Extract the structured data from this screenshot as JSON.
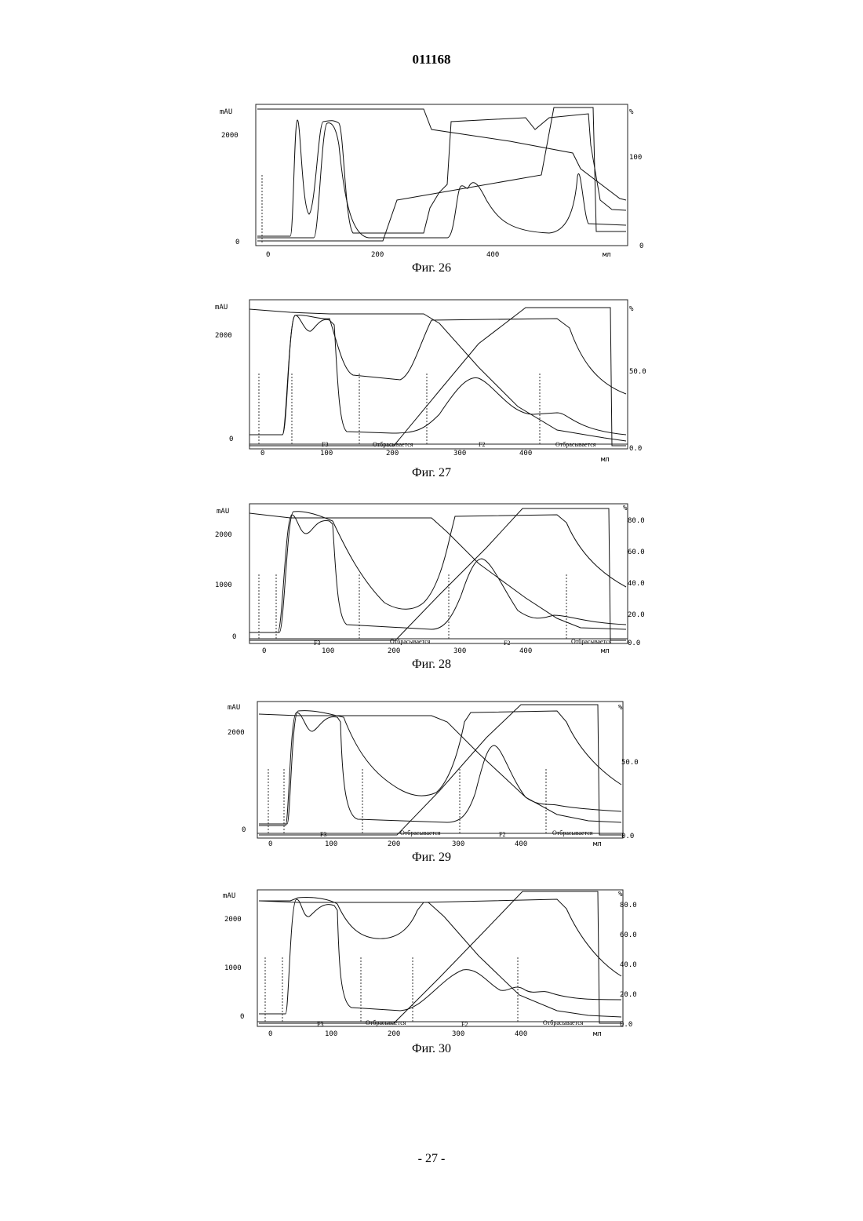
{
  "document": {
    "number": "011168",
    "page": "- 27 -"
  },
  "figures": [
    {
      "id": "fig26",
      "caption": "Фиг. 26",
      "y_units": "mAU",
      "y_right_units": "%",
      "x_units": "мл",
      "left_ticks": [
        "2000",
        "0"
      ],
      "right_ticks": [
        "100",
        "0"
      ],
      "x_ticks": [
        "0",
        "200",
        "400"
      ],
      "segments": []
    },
    {
      "id": "fig27",
      "caption": "Фиг. 27",
      "y_units": "mAU",
      "y_right_units": "%",
      "x_units": "мл",
      "left_ticks": [
        "2000",
        "0"
      ],
      "right_ticks": [
        "50.0",
        "0.0"
      ],
      "x_ticks": [
        "0",
        "100",
        "200",
        "300",
        "400"
      ],
      "segments": [
        "F3",
        "Отбрасывается",
        "F2",
        "Отбрасывается"
      ]
    },
    {
      "id": "fig28",
      "caption": "Фиг. 28",
      "y_units": "mAU",
      "y_right_units": "%",
      "x_units": "мл",
      "left_ticks": [
        "2000",
        "1000",
        "0"
      ],
      "right_ticks": [
        "80.0",
        "60.0",
        "40.0",
        "20.0",
        "0.0"
      ],
      "x_ticks": [
        "0",
        "100",
        "200",
        "300",
        "400"
      ],
      "segments": [
        "F3",
        "Отбрасывается",
        "F2",
        "Отбрасывается"
      ]
    },
    {
      "id": "fig29",
      "caption": "Фиг. 29",
      "y_units": "mAU",
      "y_right_units": "%",
      "x_units": "мл",
      "left_ticks": [
        "2000",
        "0"
      ],
      "right_ticks": [
        "50.0",
        "0.0"
      ],
      "x_ticks": [
        "0",
        "100",
        "200",
        "300",
        "400"
      ],
      "segments": [
        "F3",
        "Отбрасывается",
        "F2",
        "Отбрасывается"
      ]
    },
    {
      "id": "fig30",
      "caption": "Фиг. 30",
      "y_units": "mAU",
      "y_right_units": "%",
      "x_units": "мл",
      "left_ticks": [
        "2000",
        "1000",
        "0"
      ],
      "right_ticks": [
        "80.0",
        "60.0",
        "40.0",
        "20.0",
        "0.0"
      ],
      "x_ticks": [
        "0",
        "100",
        "200",
        "300",
        "400"
      ],
      "segments": [
        "F3",
        "Отбрасывается",
        "F2",
        "Отбрасывается"
      ]
    }
  ]
}
